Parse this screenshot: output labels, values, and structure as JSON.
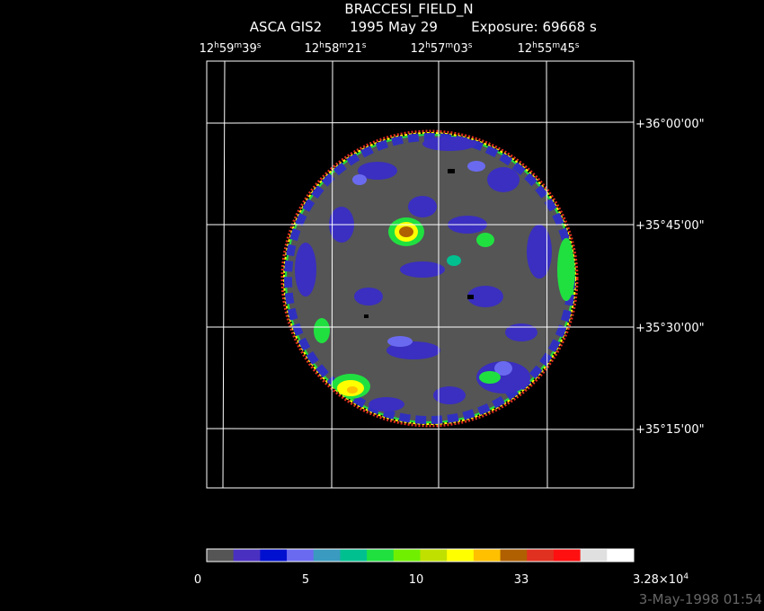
{
  "header": {
    "title": "BRACCESI_FIELD_N",
    "instrument": "ASCA GIS2",
    "date": "1995 May 29",
    "exposure": "Exposure: 69668 s"
  },
  "ra_labels": [
    {
      "parts": [
        "12",
        "h",
        "59",
        "m",
        "39",
        "s"
      ]
    },
    {
      "parts": [
        "12",
        "h",
        "58",
        "m",
        "21",
        "s"
      ]
    },
    {
      "parts": [
        "12",
        "h",
        "57",
        "m",
        "03",
        "s"
      ]
    },
    {
      "parts": [
        "12",
        "h",
        "55",
        "m",
        "45",
        "s"
      ]
    }
  ],
  "dec_labels": [
    "+36°00'00\"",
    "+35°45'00\"",
    "+35°30'00\"",
    "+35°15'00\""
  ],
  "colorbar": {
    "colors": [
      "#555555",
      "#4a30c0",
      "#0010d0",
      "#6a6af0",
      "#3a9ac0",
      "#00c090",
      "#20e040",
      "#70f000",
      "#c0e000",
      "#ffff00",
      "#ffc000",
      "#b06000",
      "#e03020",
      "#ff1010",
      "#e0e0e0",
      "#ffffff"
    ],
    "labels": [
      {
        "parts": [
          "0"
        ]
      },
      {
        "parts": [
          "5"
        ]
      },
      {
        "parts": [
          "10"
        ]
      },
      {
        "parts": [
          "33"
        ]
      },
      {
        "parts": [
          "3.28×10",
          "4"
        ]
      }
    ]
  },
  "footer": {
    "timestamp": "3-May-1998 01:54"
  }
}
